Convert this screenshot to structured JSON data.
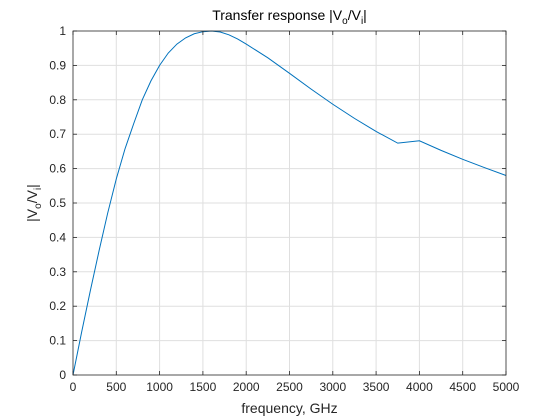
{
  "chart_data": {
    "type": "line",
    "title": {
      "base": "Transfer response |V",
      "sub1": "o",
      "mid": "/V",
      "sub2": "i",
      "end": "|"
    },
    "xlabel": "frequency, GHz",
    "ylabel": {
      "base": "|V",
      "sub1": "o",
      "mid": "/V",
      "sub2": "i",
      "end": "|"
    },
    "xlim": [
      0,
      5000
    ],
    "ylim": [
      0,
      1
    ],
    "xticks": [
      0,
      500,
      1000,
      1500,
      2000,
      2500,
      3000,
      3500,
      4000,
      4500,
      5000
    ],
    "xtick_labels": [
      "0",
      "500",
      "1000",
      "1500",
      "2000",
      "2500",
      "3000",
      "3500",
      "4000",
      "4500",
      "5000"
    ],
    "yticks": [
      0,
      0.1,
      0.2,
      0.3,
      0.4,
      0.5,
      0.6,
      0.7,
      0.8,
      0.9,
      1
    ],
    "ytick_labels": [
      "0",
      "0.1",
      "0.2",
      "0.3",
      "0.4",
      "0.5",
      "0.6",
      "0.7",
      "0.8",
      "0.9",
      "1"
    ],
    "grid": true,
    "series": [
      {
        "color": "#0072bd",
        "x": [
          0,
          100,
          200,
          300,
          400,
          500,
          600,
          700,
          800,
          900,
          1000,
          1100,
          1200,
          1300,
          1400,
          1500,
          1600,
          1700,
          1800,
          1900,
          2000,
          2250,
          2500,
          2750,
          3000,
          3250,
          3500,
          3750,
          4000,
          4250,
          4500,
          4750,
          5000
        ],
        "y": [
          0,
          0.125,
          0.245,
          0.36,
          0.47,
          0.57,
          0.657,
          0.73,
          0.8,
          0.855,
          0.9,
          0.936,
          0.962,
          0.98,
          0.992,
          0.998,
          1.0,
          0.997,
          0.989,
          0.977,
          0.962,
          0.922,
          0.877,
          0.831,
          0.787,
          0.746,
          0.708,
          0.674,
          0.681,
          0.653,
          0.627,
          0.603,
          0.58
        ]
      }
    ]
  }
}
